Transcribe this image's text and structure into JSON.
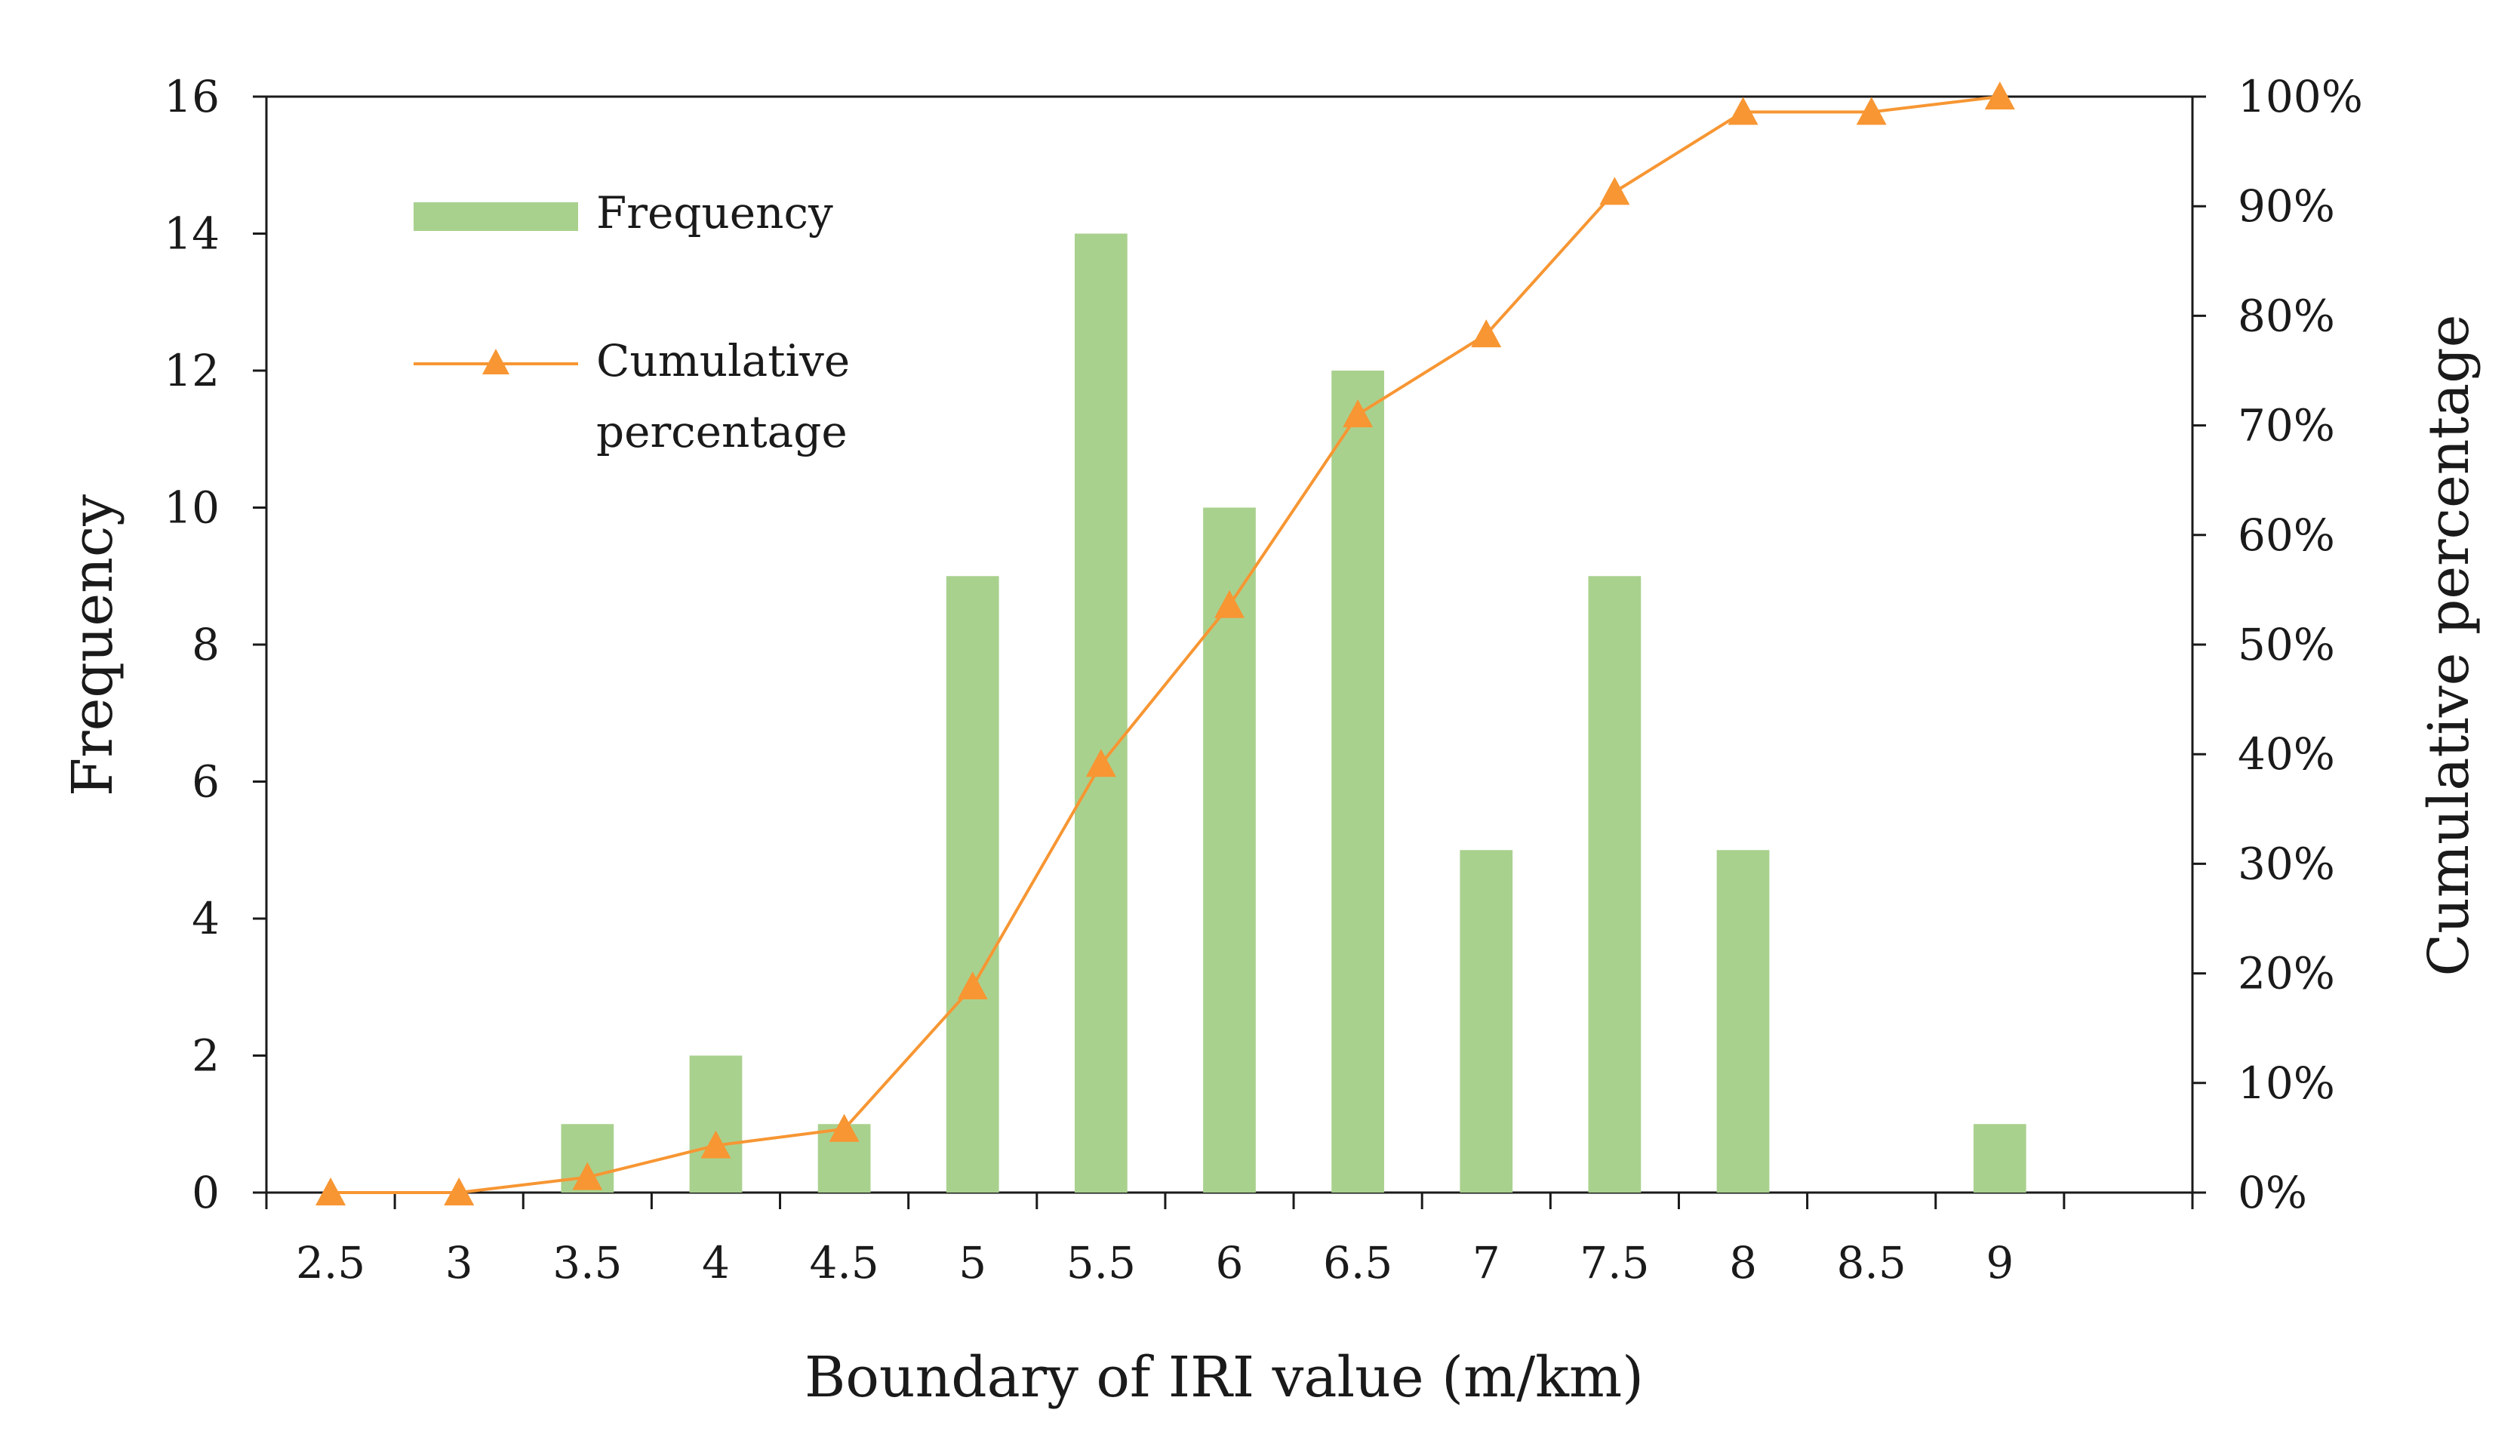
{
  "chart_data": {
    "type": "bar",
    "title": "",
    "xlabel": "Boundary of IRI value (m/km)",
    "ylabel": "Frequency",
    "y2label": "Cumulative percentage",
    "categories": [
      "2.5",
      "3",
      "3.5",
      "4",
      "4.5",
      "5",
      "5.5",
      "6",
      "6.5",
      "7",
      "7.5",
      "8",
      "8.5",
      "9"
    ],
    "ylim": [
      0,
      16
    ],
    "y_ticks": [
      0,
      2,
      4,
      6,
      8,
      10,
      12,
      14,
      16
    ],
    "y2lim": [
      0,
      100
    ],
    "y2_ticks": [
      "0%",
      "10%",
      "20%",
      "30%",
      "40%",
      "50%",
      "60%",
      "70%",
      "80%",
      "90%",
      "100%"
    ],
    "series": [
      {
        "name": "Frequency",
        "type": "bar",
        "axis": "left",
        "color": "#a9d18e",
        "values": [
          0,
          0,
          1,
          2,
          1,
          9,
          14,
          10,
          12,
          5,
          9,
          5,
          0,
          1
        ]
      },
      {
        "name": "Cumulative percentage",
        "type": "line",
        "axis": "right",
        "color": "#f79633",
        "marker": "triangle",
        "values": [
          0,
          0,
          1.4,
          4.3,
          5.8,
          18.8,
          39.1,
          53.6,
          71.0,
          78.3,
          91.3,
          98.6,
          98.6,
          100
        ]
      }
    ],
    "legend": {
      "position": "top-left",
      "frequency_label": "Frequency",
      "cumulative_label_line1": "Cumulative",
      "cumulative_label_line2": "percentage"
    }
  }
}
